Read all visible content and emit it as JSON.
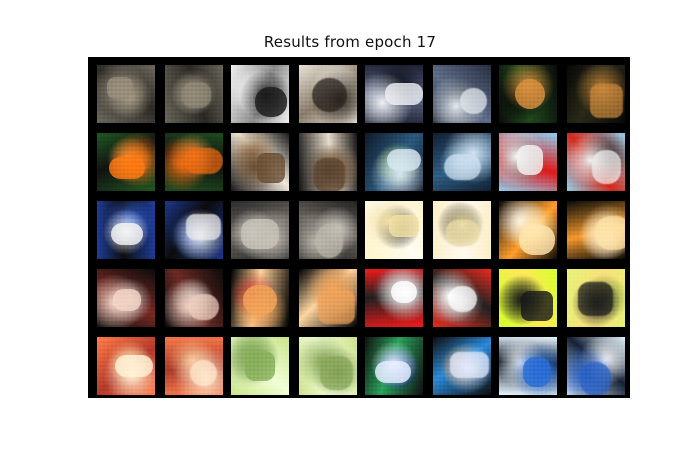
{
  "figure": {
    "title": "Results from epoch 17"
  },
  "grid": {
    "rows": 5,
    "cols": 8,
    "frame_color": "#000000",
    "tiles": [
      {
        "row": 0,
        "col": 0,
        "pair": "A",
        "kind": "original",
        "content": "grey textured scene",
        "palette": [
          "#6e6a5e",
          "#9a8f7c",
          "#2d2a26",
          "#b0a58f"
        ]
      },
      {
        "row": 0,
        "col": 1,
        "pair": "A",
        "kind": "reconstruction",
        "content": "grey textured scene",
        "palette": [
          "#6a665a",
          "#928a78",
          "#2a2824",
          "#a59b86"
        ]
      },
      {
        "row": 0,
        "col": 2,
        "pair": "B",
        "kind": "original",
        "content": "black and white branches",
        "palette": [
          "#f1f1f1",
          "#1b1b1b",
          "#8c8c8c",
          "#ffffff"
        ]
      },
      {
        "row": 0,
        "col": 3,
        "pair": "B",
        "kind": "reconstruction",
        "content": "black and white branches",
        "palette": [
          "#e8e3d6",
          "#2a241e",
          "#8b7d6b",
          "#f7f4ee"
        ]
      },
      {
        "row": 0,
        "col": 4,
        "pair": "C",
        "kind": "original",
        "content": "white cat on dark",
        "palette": [
          "#1d2233",
          "#eef0f4",
          "#5a6280",
          "#0c0f18"
        ]
      },
      {
        "row": 0,
        "col": 5,
        "pair": "C",
        "kind": "reconstruction",
        "content": "white cat on dark",
        "palette": [
          "#273042",
          "#e6ebf1",
          "#5f6e89",
          "#0f1420"
        ]
      },
      {
        "row": 0,
        "col": 6,
        "pair": "D",
        "kind": "original",
        "content": "orange cat on grass",
        "palette": [
          "#0b0b0b",
          "#d8913e",
          "#1f4b1c",
          "#000000"
        ]
      },
      {
        "row": 0,
        "col": 7,
        "pair": "D",
        "kind": "reconstruction",
        "content": "orange cat on grass",
        "palette": [
          "#060606",
          "#c98a3c",
          "#2a2a18",
          "#000000"
        ]
      },
      {
        "row": 1,
        "col": 0,
        "pair": "E",
        "kind": "original",
        "content": "orange cat on green",
        "palette": [
          "#1f5a22",
          "#ff7a12",
          "#111111",
          "#ffb04a"
        ]
      },
      {
        "row": 1,
        "col": 1,
        "pair": "E",
        "kind": "reconstruction",
        "content": "orange cat on green",
        "palette": [
          "#1e4e1f",
          "#f06c10",
          "#0f0f0f",
          "#f3a24a"
        ]
      },
      {
        "row": 1,
        "col": 2,
        "pair": "F",
        "kind": "original",
        "content": "tabby cat portrait",
        "palette": [
          "#1a1a1a",
          "#6b4e33",
          "#f1eadc",
          "#a6835d"
        ]
      },
      {
        "row": 1,
        "col": 3,
        "pair": "F",
        "kind": "reconstruction",
        "content": "tabby cat portrait",
        "palette": [
          "#141414",
          "#5b442f",
          "#e7dccb",
          "#9a7a57"
        ]
      },
      {
        "row": 1,
        "col": 4,
        "pair": "G",
        "kind": "original",
        "content": "blue outdoor scene",
        "palette": [
          "#0f1b2a",
          "#d8e8f3",
          "#2c5a7f",
          "#98c26b"
        ]
      },
      {
        "row": 1,
        "col": 5,
        "pair": "G",
        "kind": "reconstruction",
        "content": "blue outdoor scene",
        "palette": [
          "#102033",
          "#d2e4f2",
          "#2f5f86",
          "#8fb8d6"
        ]
      },
      {
        "row": 1,
        "col": 6,
        "pair": "H",
        "kind": "original",
        "content": "dog with red cloth",
        "palette": [
          "#8fd0ef",
          "#f5f5f5",
          "#e01818",
          "#1f1f1f"
        ]
      },
      {
        "row": 1,
        "col": 7,
        "pair": "H",
        "kind": "reconstruction",
        "content": "dog with red cloth",
        "palette": [
          "#92d0ea",
          "#f2f2f2",
          "#d42a1b",
          "#202020"
        ]
      },
      {
        "row": 2,
        "col": 0,
        "pair": "I",
        "kind": "original",
        "content": "black cat blue bg",
        "palette": [
          "#1f3d9c",
          "#f4f4f4",
          "#0d0d0d",
          "#2f5fd8"
        ]
      },
      {
        "row": 2,
        "col": 1,
        "pair": "I",
        "kind": "reconstruction",
        "content": "black cat blue bg",
        "palette": [
          "#1c388d",
          "#eeeeee",
          "#0b0b0b",
          "#2e5bc9"
        ]
      },
      {
        "row": 2,
        "col": 2,
        "pair": "J",
        "kind": "original",
        "content": "grey cat close-up",
        "palette": [
          "#2a2a2a",
          "#c7c2b8",
          "#6b665f",
          "#e2ded6"
        ]
      },
      {
        "row": 2,
        "col": 3,
        "pair": "J",
        "kind": "reconstruction",
        "content": "grey cat close-up",
        "palette": [
          "#232323",
          "#bdb8ae",
          "#66615a",
          "#d8d4cc"
        ]
      },
      {
        "row": 2,
        "col": 4,
        "pair": "K",
        "kind": "original",
        "content": "white fluffy animal",
        "palette": [
          "#fff4c8",
          "#f3e2a6",
          "#fffdf2",
          "#1b1b1b"
        ]
      },
      {
        "row": 2,
        "col": 5,
        "pair": "K",
        "kind": "reconstruction",
        "content": "white fluffy animal",
        "palette": [
          "#fbf0c6",
          "#eedfa8",
          "#fffaf0",
          "#1a1a1a"
        ]
      },
      {
        "row": 2,
        "col": 6,
        "pair": "L",
        "kind": "original",
        "content": "orange-white cat",
        "palette": [
          "#0b0b0b",
          "#ffe7b0",
          "#ff9f2a",
          "#ffffff"
        ]
      },
      {
        "row": 2,
        "col": 7,
        "pair": "L",
        "kind": "reconstruction",
        "content": "orange-white cat",
        "palette": [
          "#0a0a0a",
          "#ffe3a7",
          "#f49a2b",
          "#ffffff"
        ]
      },
      {
        "row": 3,
        "col": 0,
        "pair": "M",
        "kind": "original",
        "content": "cat in dark",
        "palette": [
          "#0b0b0b",
          "#f3d6c7",
          "#7a2a24",
          "#c7c7c7"
        ]
      },
      {
        "row": 3,
        "col": 1,
        "pair": "M",
        "kind": "reconstruction",
        "content": "cat in dark",
        "palette": [
          "#0a0a0a",
          "#efd0c1",
          "#6c2a24",
          "#bdbdbd"
        ]
      },
      {
        "row": 3,
        "col": 2,
        "pair": "N",
        "kind": "original",
        "content": "kitten on black",
        "palette": [
          "#000000",
          "#f2a55a",
          "#ffd39a",
          "#c6372e"
        ]
      },
      {
        "row": 3,
        "col": 3,
        "pair": "N",
        "kind": "reconstruction",
        "content": "kitten on black",
        "palette": [
          "#000000",
          "#f0a45a",
          "#ffd7a2",
          "#b58b5c"
        ]
      },
      {
        "row": 3,
        "col": 4,
        "pair": "O",
        "kind": "original",
        "content": "horse red bg",
        "palette": [
          "#f51a1a",
          "#ffffff",
          "#202020",
          "#9b9b9b"
        ]
      },
      {
        "row": 3,
        "col": 5,
        "pair": "O",
        "kind": "reconstruction",
        "content": "horse red bg",
        "palette": [
          "#ec2b1c",
          "#ffffff",
          "#212121",
          "#999999"
        ]
      },
      {
        "row": 3,
        "col": 6,
        "pair": "P",
        "kind": "original",
        "content": "horse on yellow-green",
        "palette": [
          "#d7ff2a",
          "#1a1a1a",
          "#ffe95a",
          "#6b8c1f"
        ]
      },
      {
        "row": 3,
        "col": 7,
        "pair": "P",
        "kind": "reconstruction",
        "content": "horse on yellow-green",
        "palette": [
          "#e6f27a",
          "#1f1f1f",
          "#f8e07c",
          "#647a2a"
        ]
      },
      {
        "row": 4,
        "col": 0,
        "pair": "Q",
        "kind": "original",
        "content": "fox-like face",
        "palette": [
          "#ff7e4a",
          "#fff1d6",
          "#b43a2a",
          "#ffd09a"
        ]
      },
      {
        "row": 4,
        "col": 1,
        "pair": "Q",
        "kind": "reconstruction",
        "content": "fox-like face",
        "palette": [
          "#f47a4b",
          "#ffe9cf",
          "#ad3b2c",
          "#f2c08f"
        ]
      },
      {
        "row": 4,
        "col": 2,
        "pair": "R",
        "kind": "original",
        "content": "light green blur",
        "palette": [
          "#c9e58c",
          "#8ab05c",
          "#f2ffd8",
          "#6b8f4a"
        ]
      },
      {
        "row": 4,
        "col": 3,
        "pair": "R",
        "kind": "reconstruction",
        "content": "light green blur",
        "palette": [
          "#cfe28f",
          "#8aa85a",
          "#f3ffd9",
          "#6a8a49"
        ]
      },
      {
        "row": 4,
        "col": 4,
        "pair": "S",
        "kind": "original",
        "content": "animal with colors",
        "palette": [
          "#0f0f0f",
          "#e9f0ff",
          "#2aa35c",
          "#2b3fd6"
        ]
      },
      {
        "row": 4,
        "col": 5,
        "pair": "S",
        "kind": "reconstruction",
        "content": "animal with colors",
        "palette": [
          "#0c0c0c",
          "#e4ebff",
          "#2b8bd8",
          "#b77735"
        ]
      },
      {
        "row": 4,
        "col": 6,
        "pair": "T",
        "kind": "original",
        "content": "boat in blue",
        "palette": [
          "#e8f6ff",
          "#2a6fd8",
          "#0f1b2a",
          "#ffffff"
        ]
      },
      {
        "row": 4,
        "col": 7,
        "pair": "T",
        "kind": "reconstruction",
        "content": "boat in blue",
        "palette": [
          "#e6f3ff",
          "#2b63c9",
          "#132134",
          "#ffffff"
        ]
      }
    ]
  }
}
